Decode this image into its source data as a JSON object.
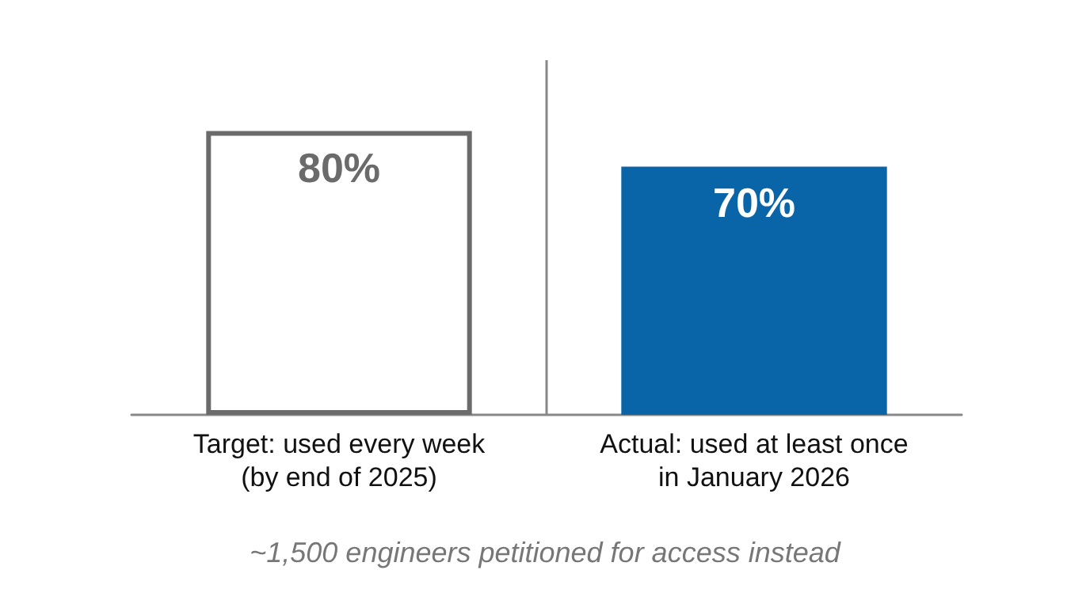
{
  "chart_data": {
    "type": "bar",
    "categories": [
      "Target: used every week\n(by end of 2025)",
      "Actual: used at least once\nin January 2026"
    ],
    "values": [
      80,
      70
    ],
    "colors": [
      "#6b6b6b",
      "#0a64a8"
    ],
    "value_labels": [
      "80%",
      "70%"
    ],
    "grid": "x",
    "annotations": [
      "~1,500 engineers petitioned for access instead"
    ]
  }
}
